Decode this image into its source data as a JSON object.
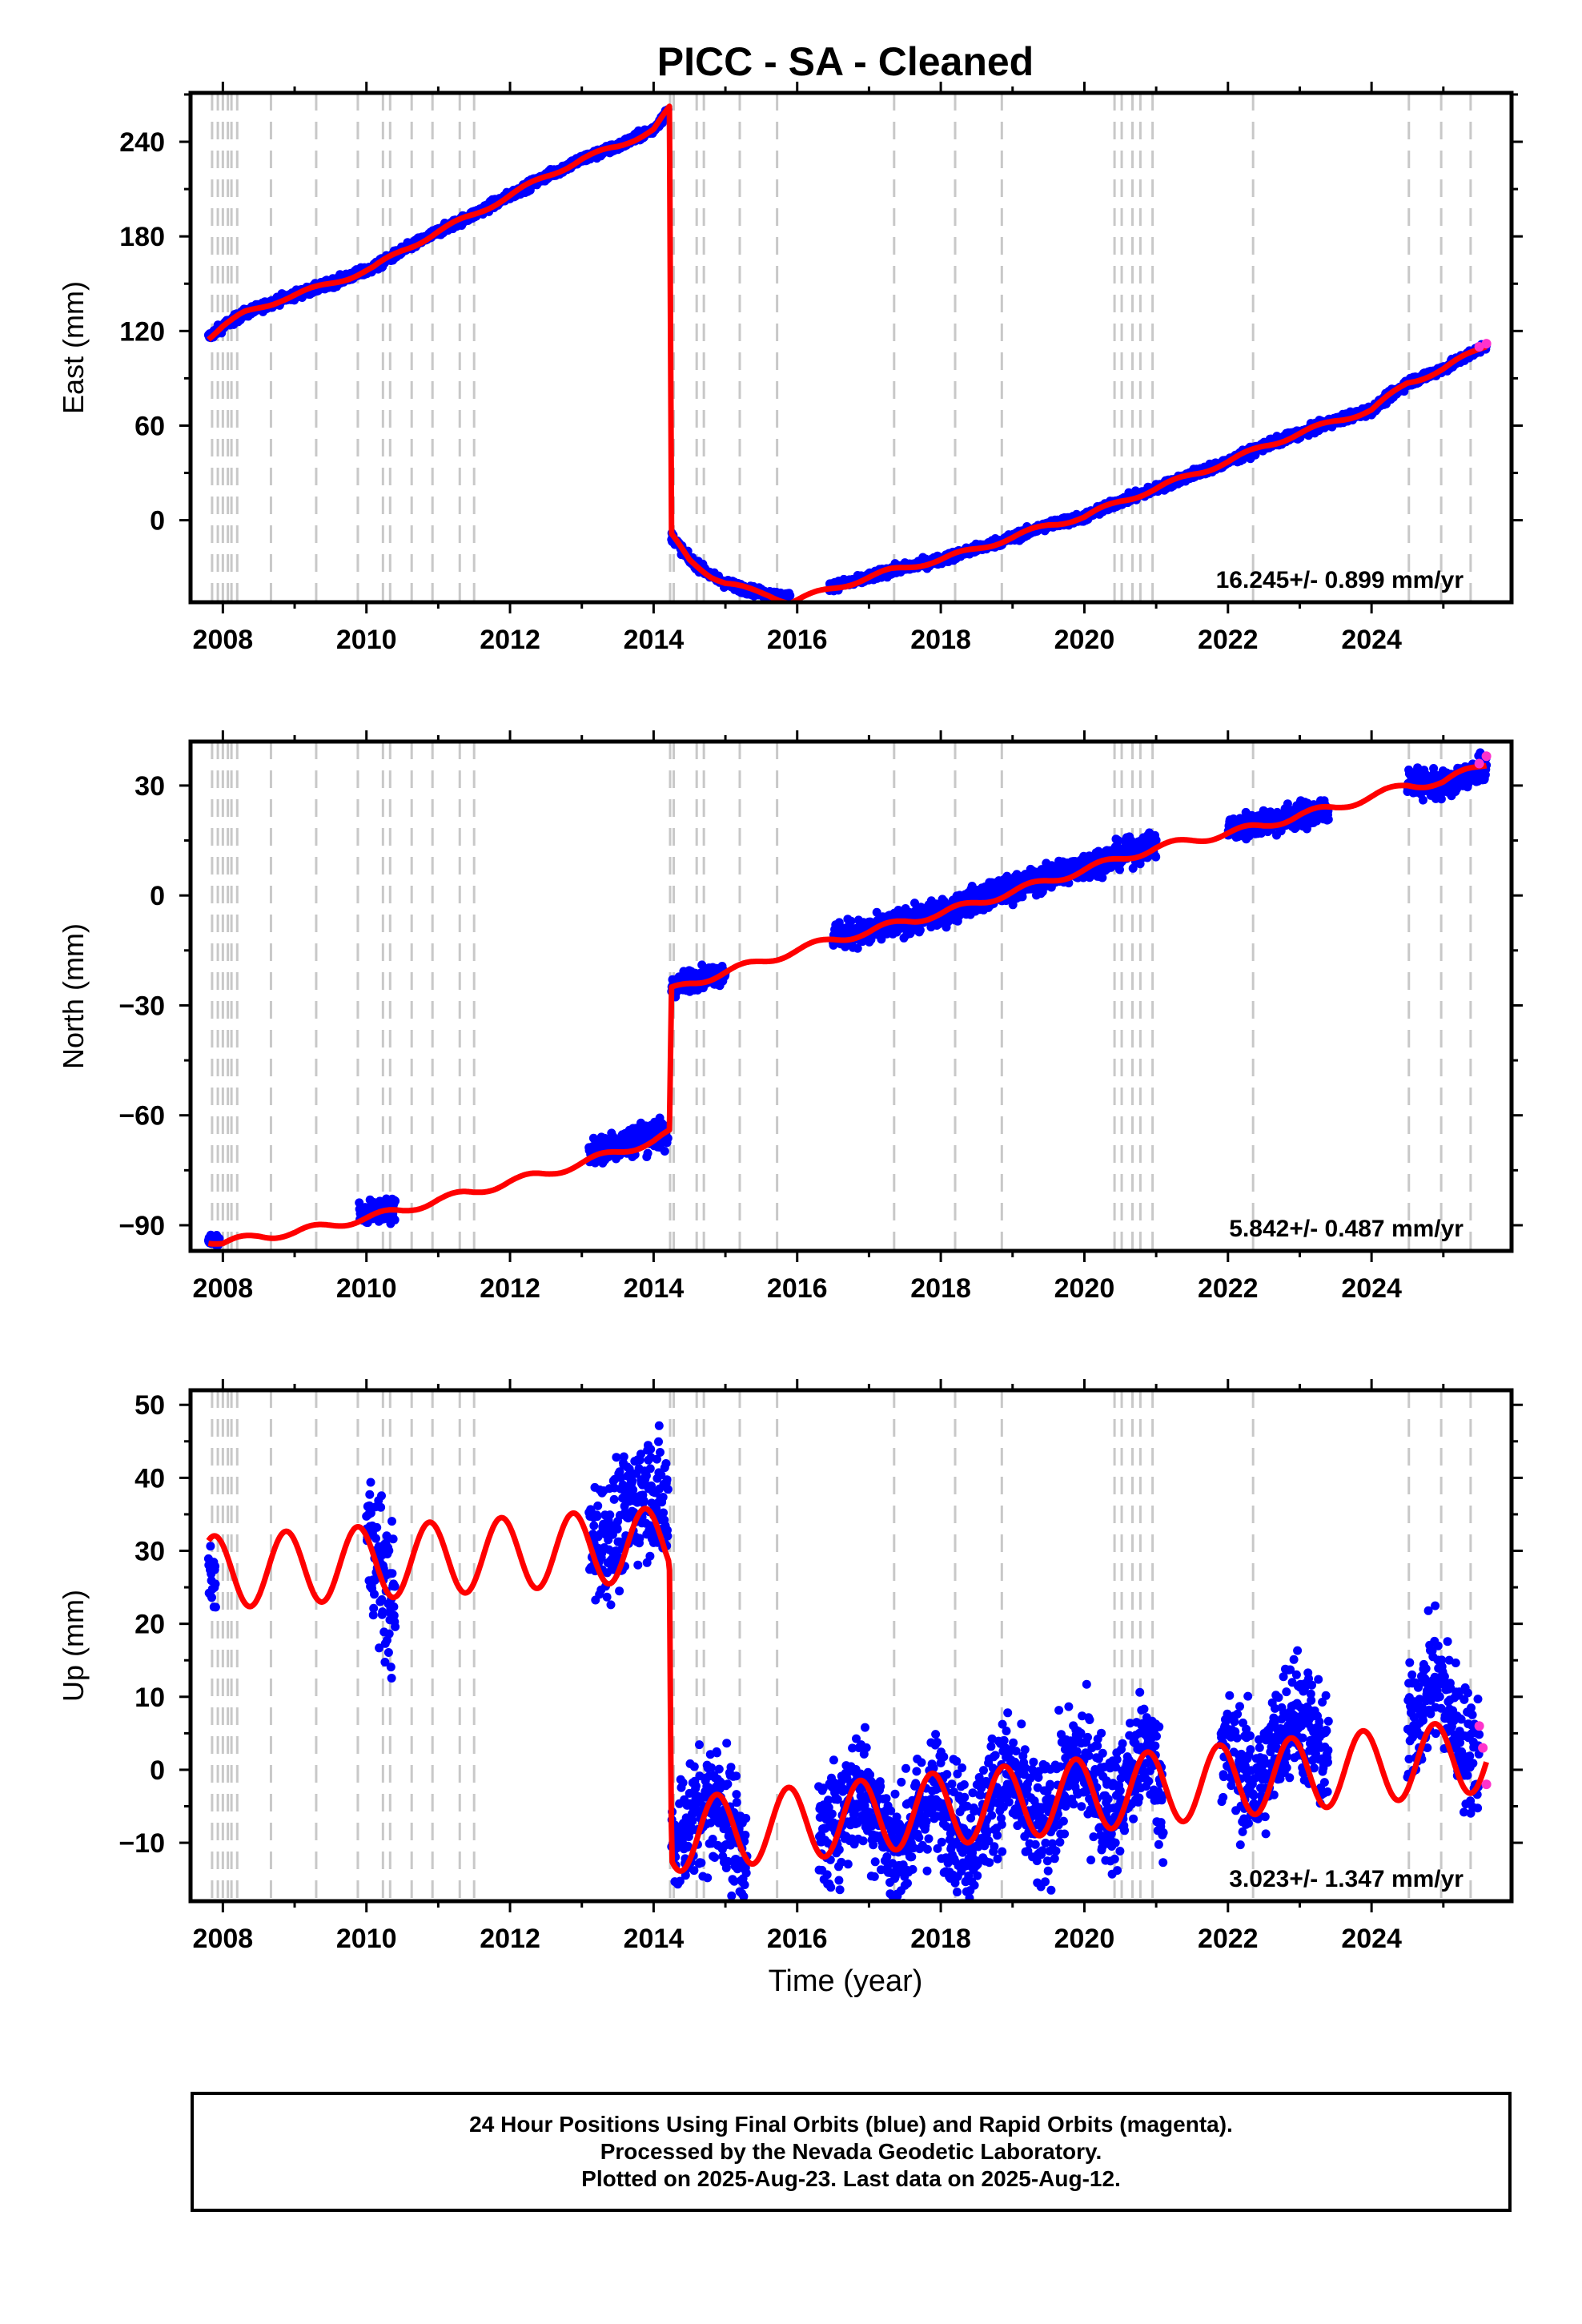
{
  "title": "PICC  - SA - Cleaned",
  "xlabel": "Time (year)",
  "colors": {
    "final_orbits": "#0000ff",
    "rapid_orbits": "#ff33cc",
    "model": "#ff0000",
    "event_lines": "#c8c8c8",
    "frame": "#000000"
  },
  "footer": {
    "line1": "24 Hour Positions Using Final Orbits (blue) and Rapid Orbits (magenta).",
    "line2": "Processed by the Nevada Geodetic Laboratory.",
    "line3": "Plotted on 2025-Aug-23. Last data on 2025-Aug-12."
  },
  "chart_data": [
    {
      "type": "scatter",
      "name": "east",
      "ylabel": "East (mm)",
      "xlim": [
        2007.55,
        2025.95
      ],
      "ylim": [
        -52,
        271
      ],
      "xticks": [
        2008,
        2010,
        2012,
        2014,
        2016,
        2018,
        2020,
        2022,
        2024
      ],
      "yticks": [
        0,
        60,
        120,
        180,
        240
      ],
      "rate_label": "16.245+/- 0.899 mm/yr",
      "event_lines": [
        2007.85,
        2007.93,
        2008.0,
        2008.07,
        2008.12,
        2008.2,
        2008.67,
        2009.3,
        2009.88,
        2010.23,
        2010.33,
        2010.63,
        2010.92,
        2011.3,
        2011.5,
        2014.23,
        2014.28,
        2014.6,
        2014.7,
        2015.2,
        2015.72,
        2017.35,
        2018.2,
        2018.85,
        2020.42,
        2020.52,
        2020.67,
        2020.78,
        2020.95,
        2022.35,
        2024.52,
        2024.97,
        2025.38
      ],
      "segments": [
        {
          "x": [
            2007.8,
            2008.0,
            2008.3,
            2008.8,
            2009.3,
            2009.8,
            2010.1,
            2010.5,
            2011.0,
            2011.5,
            2012.0,
            2012.5,
            2013.0,
            2013.5,
            2014.0,
            2014.2
          ],
          "y": [
            116,
            123,
            131,
            140,
            147,
            155,
            160,
            171,
            183,
            194,
            206,
            218,
            229,
            237,
            248,
            259
          ],
          "spread": 2
        },
        {
          "x": [
            2014.25,
            2014.5,
            2014.8,
            2015.0,
            2015.3,
            2015.6,
            2015.9
          ],
          "y": [
            -10,
            -25,
            -35,
            -40,
            -44,
            -47,
            -49
          ],
          "spread": 2
        },
        {
          "x": [
            2016.45,
            2016.8,
            2017.3,
            2018.0,
            2018.5,
            2019.0,
            2019.5,
            2020.0,
            2020.5,
            2021.0,
            2021.5,
            2022.0,
            2022.5,
            2023.0,
            2023.5,
            2024.0,
            2024.5,
            2025.0,
            2025.6
          ],
          "y": [
            -42,
            -39,
            -32,
            -25,
            -18,
            -11,
            -3,
            2,
            12,
            20,
            29,
            37,
            47,
            55,
            63,
            70,
            87,
            96,
            111
          ],
          "spread": 2
        }
      ],
      "model": {
        "x": [
          2007.8,
          2008.0,
          2008.3,
          2008.8,
          2009.3,
          2009.8,
          2010.1,
          2010.5,
          2011.0,
          2011.5,
          2012.0,
          2012.5,
          2013.0,
          2013.5,
          2014.0,
          2014.22,
          2014.25,
          2014.5,
          2014.8,
          2015.0,
          2015.3,
          2015.6,
          2015.9,
          2016.3,
          2016.8,
          2017.3,
          2018.0,
          2018.5,
          2019.0,
          2019.5,
          2020.0,
          2020.5,
          2021.0,
          2021.5,
          2022.0,
          2022.5,
          2023.0,
          2023.5,
          2024.0,
          2024.5,
          2025.0,
          2025.6
        ],
        "y": [
          116,
          123,
          131,
          140,
          147,
          155,
          160,
          171,
          183,
          194,
          206,
          218,
          229,
          237,
          248,
          261,
          -10,
          -25,
          -35,
          -40,
          -44,
          -47,
          -52,
          -46,
          -39,
          -32,
          -25,
          -18,
          -11,
          -3,
          2,
          12,
          20,
          29,
          37,
          47,
          55,
          63,
          70,
          87,
          96,
          111
        ],
        "seasonal_amp": 1.5
      },
      "rapid": {
        "x": [
          2025.5,
          2025.6
        ],
        "y": [
          110,
          112
        ]
      }
    },
    {
      "type": "scatter",
      "name": "north",
      "ylabel": "North (mm)",
      "xlim": [
        2007.55,
        2025.95
      ],
      "ylim": [
        -97,
        42
      ],
      "xticks": [
        2008,
        2010,
        2012,
        2014,
        2016,
        2018,
        2020,
        2022,
        2024
      ],
      "yticks": [
        -90,
        -60,
        -30,
        0,
        30
      ],
      "rate_label": "5.842+/- 0.487 mm/yr",
      "event_lines": [
        2007.85,
        2007.93,
        2008.0,
        2008.07,
        2008.12,
        2008.2,
        2008.67,
        2009.3,
        2009.88,
        2010.23,
        2010.33,
        2010.63,
        2010.92,
        2011.3,
        2011.5,
        2014.23,
        2014.28,
        2014.6,
        2014.7,
        2015.2,
        2015.72,
        2017.35,
        2018.2,
        2018.85,
        2020.42,
        2020.52,
        2020.67,
        2020.78,
        2020.95,
        2022.35,
        2024.52,
        2024.97,
        2025.38
      ],
      "segments": [
        {
          "x": [
            2007.8,
            2007.95
          ],
          "y": [
            -94,
            -94
          ],
          "spread": 1
        },
        {
          "x": [
            2009.9,
            2010.2,
            2010.4
          ],
          "y": [
            -87,
            -86,
            -86
          ],
          "spread": 2
        },
        {
          "x": [
            2013.1,
            2013.5,
            2014.0,
            2014.2
          ],
          "y": [
            -70,
            -68,
            -65,
            -66
          ],
          "spread": 3
        },
        {
          "x": [
            2014.25,
            2014.5,
            2015.0
          ],
          "y": [
            -25,
            -23,
            -21
          ],
          "spread": 2
        },
        {
          "x": [
            2016.5,
            2017.0,
            2017.5,
            2018.0,
            2018.5,
            2019.0,
            2019.5,
            2020.0,
            2020.5,
            2021.0
          ],
          "y": [
            -11,
            -10,
            -7,
            -5,
            -1,
            2,
            5,
            8,
            11,
            14
          ],
          "spread": 2.5
        },
        {
          "x": [
            2022.0,
            2022.5,
            2023.0,
            2023.4
          ],
          "y": [
            18,
            20,
            22,
            23
          ],
          "spread": 2.5
        },
        {
          "x": [
            2024.5,
            2025.0,
            2025.6
          ],
          "y": [
            31,
            30,
            35
          ],
          "spread": 2.5
        }
      ],
      "model": {
        "x": [
          2007.8,
          2008.0,
          2008.5,
          2009.0,
          2009.5,
          2010.0,
          2010.5,
          2011.0,
          2011.5,
          2012.0,
          2012.5,
          2013.0,
          2013.5,
          2014.0,
          2014.22,
          2014.25,
          2014.5,
          2015.0,
          2015.5,
          2016.0,
          2016.5,
          2017.0,
          2017.5,
          2018.0,
          2018.5,
          2019.0,
          2019.5,
          2020.0,
          2020.5,
          2021.0,
          2021.5,
          2022.0,
          2022.5,
          2023.0,
          2023.5,
          2024.0,
          2024.5,
          2025.0,
          2025.6
        ],
        "y": [
          -94,
          -95,
          -93,
          -92,
          -90,
          -88,
          -86,
          -83,
          -81,
          -78,
          -76,
          -73,
          -70,
          -67,
          -65,
          -26,
          -24,
          -21,
          -18,
          -15,
          -12,
          -10,
          -7,
          -5,
          -2,
          1,
          4,
          7,
          10,
          13,
          15,
          17,
          19,
          22,
          24,
          27,
          30,
          31,
          36
        ],
        "seasonal_amp": 1.0
      },
      "rapid": {
        "x": [
          2025.5,
          2025.6
        ],
        "y": [
          36,
          38
        ]
      }
    },
    {
      "type": "scatter",
      "name": "up",
      "ylabel": "Up (mm)",
      "xlim": [
        2007.55,
        2025.95
      ],
      "ylim": [
        -18,
        52
      ],
      "xticks": [
        2008,
        2010,
        2012,
        2014,
        2016,
        2018,
        2020,
        2022,
        2024
      ],
      "yticks": [
        -10,
        0,
        10,
        20,
        30,
        40,
        50
      ],
      "rate_label": "3.023+/- 1.347 mm/yr",
      "event_lines": [
        2007.85,
        2007.93,
        2008.0,
        2008.07,
        2008.12,
        2008.2,
        2008.67,
        2009.3,
        2009.88,
        2010.23,
        2010.33,
        2010.63,
        2010.92,
        2011.3,
        2011.5,
        2014.23,
        2014.28,
        2014.6,
        2014.7,
        2015.2,
        2015.72,
        2017.35,
        2018.2,
        2018.85,
        2020.42,
        2020.52,
        2020.67,
        2020.78,
        2020.95,
        2022.35,
        2024.52,
        2024.97,
        2025.38
      ],
      "segments": [
        {
          "x": [
            2007.8,
            2007.9
          ],
          "y": [
            27,
            26
          ],
          "spread": 3
        },
        {
          "x": [
            2010.0,
            2010.2,
            2010.4
          ],
          "y": [
            33,
            27,
            22
          ],
          "spread": 7
        },
        {
          "x": [
            2013.1,
            2013.5,
            2013.9,
            2014.2
          ],
          "y": [
            31,
            33,
            39,
            35
          ],
          "spread": 6
        },
        {
          "x": [
            2014.25,
            2014.5,
            2014.9,
            2015.3
          ],
          "y": [
            -10,
            -7,
            -4,
            -12
          ],
          "spread": 6
        },
        {
          "x": [
            2016.3,
            2016.9,
            2017.4,
            2017.9,
            2018.4,
            2018.9,
            2019.4,
            2019.9,
            2020.4,
            2020.9,
            2021.1
          ],
          "y": [
            -10,
            -2,
            -12,
            -3,
            -10,
            0,
            -9,
            2,
            -6,
            4,
            -5
          ],
          "spread": 6
        },
        {
          "x": [
            2021.9,
            2022.4,
            2022.9,
            2023.4
          ],
          "y": [
            4,
            -3,
            9,
            1
          ],
          "spread": 6
        },
        {
          "x": [
            2024.5,
            2024.9,
            2025.3,
            2025.5
          ],
          "y": [
            5,
            13,
            3,
            2
          ],
          "spread": 6
        }
      ],
      "model": {
        "trend": [
          [
            2007.8,
            27
          ],
          [
            2014.22,
            31
          ],
          [
            2014.25,
            -9
          ],
          [
            2025.6,
            2
          ]
        ],
        "seasonal_amp": 5,
        "phase_peak": 0.88
      },
      "rapid": {
        "x": [
          2025.5,
          2025.55,
          2025.6
        ],
        "y": [
          6,
          3,
          -2
        ]
      }
    }
  ]
}
